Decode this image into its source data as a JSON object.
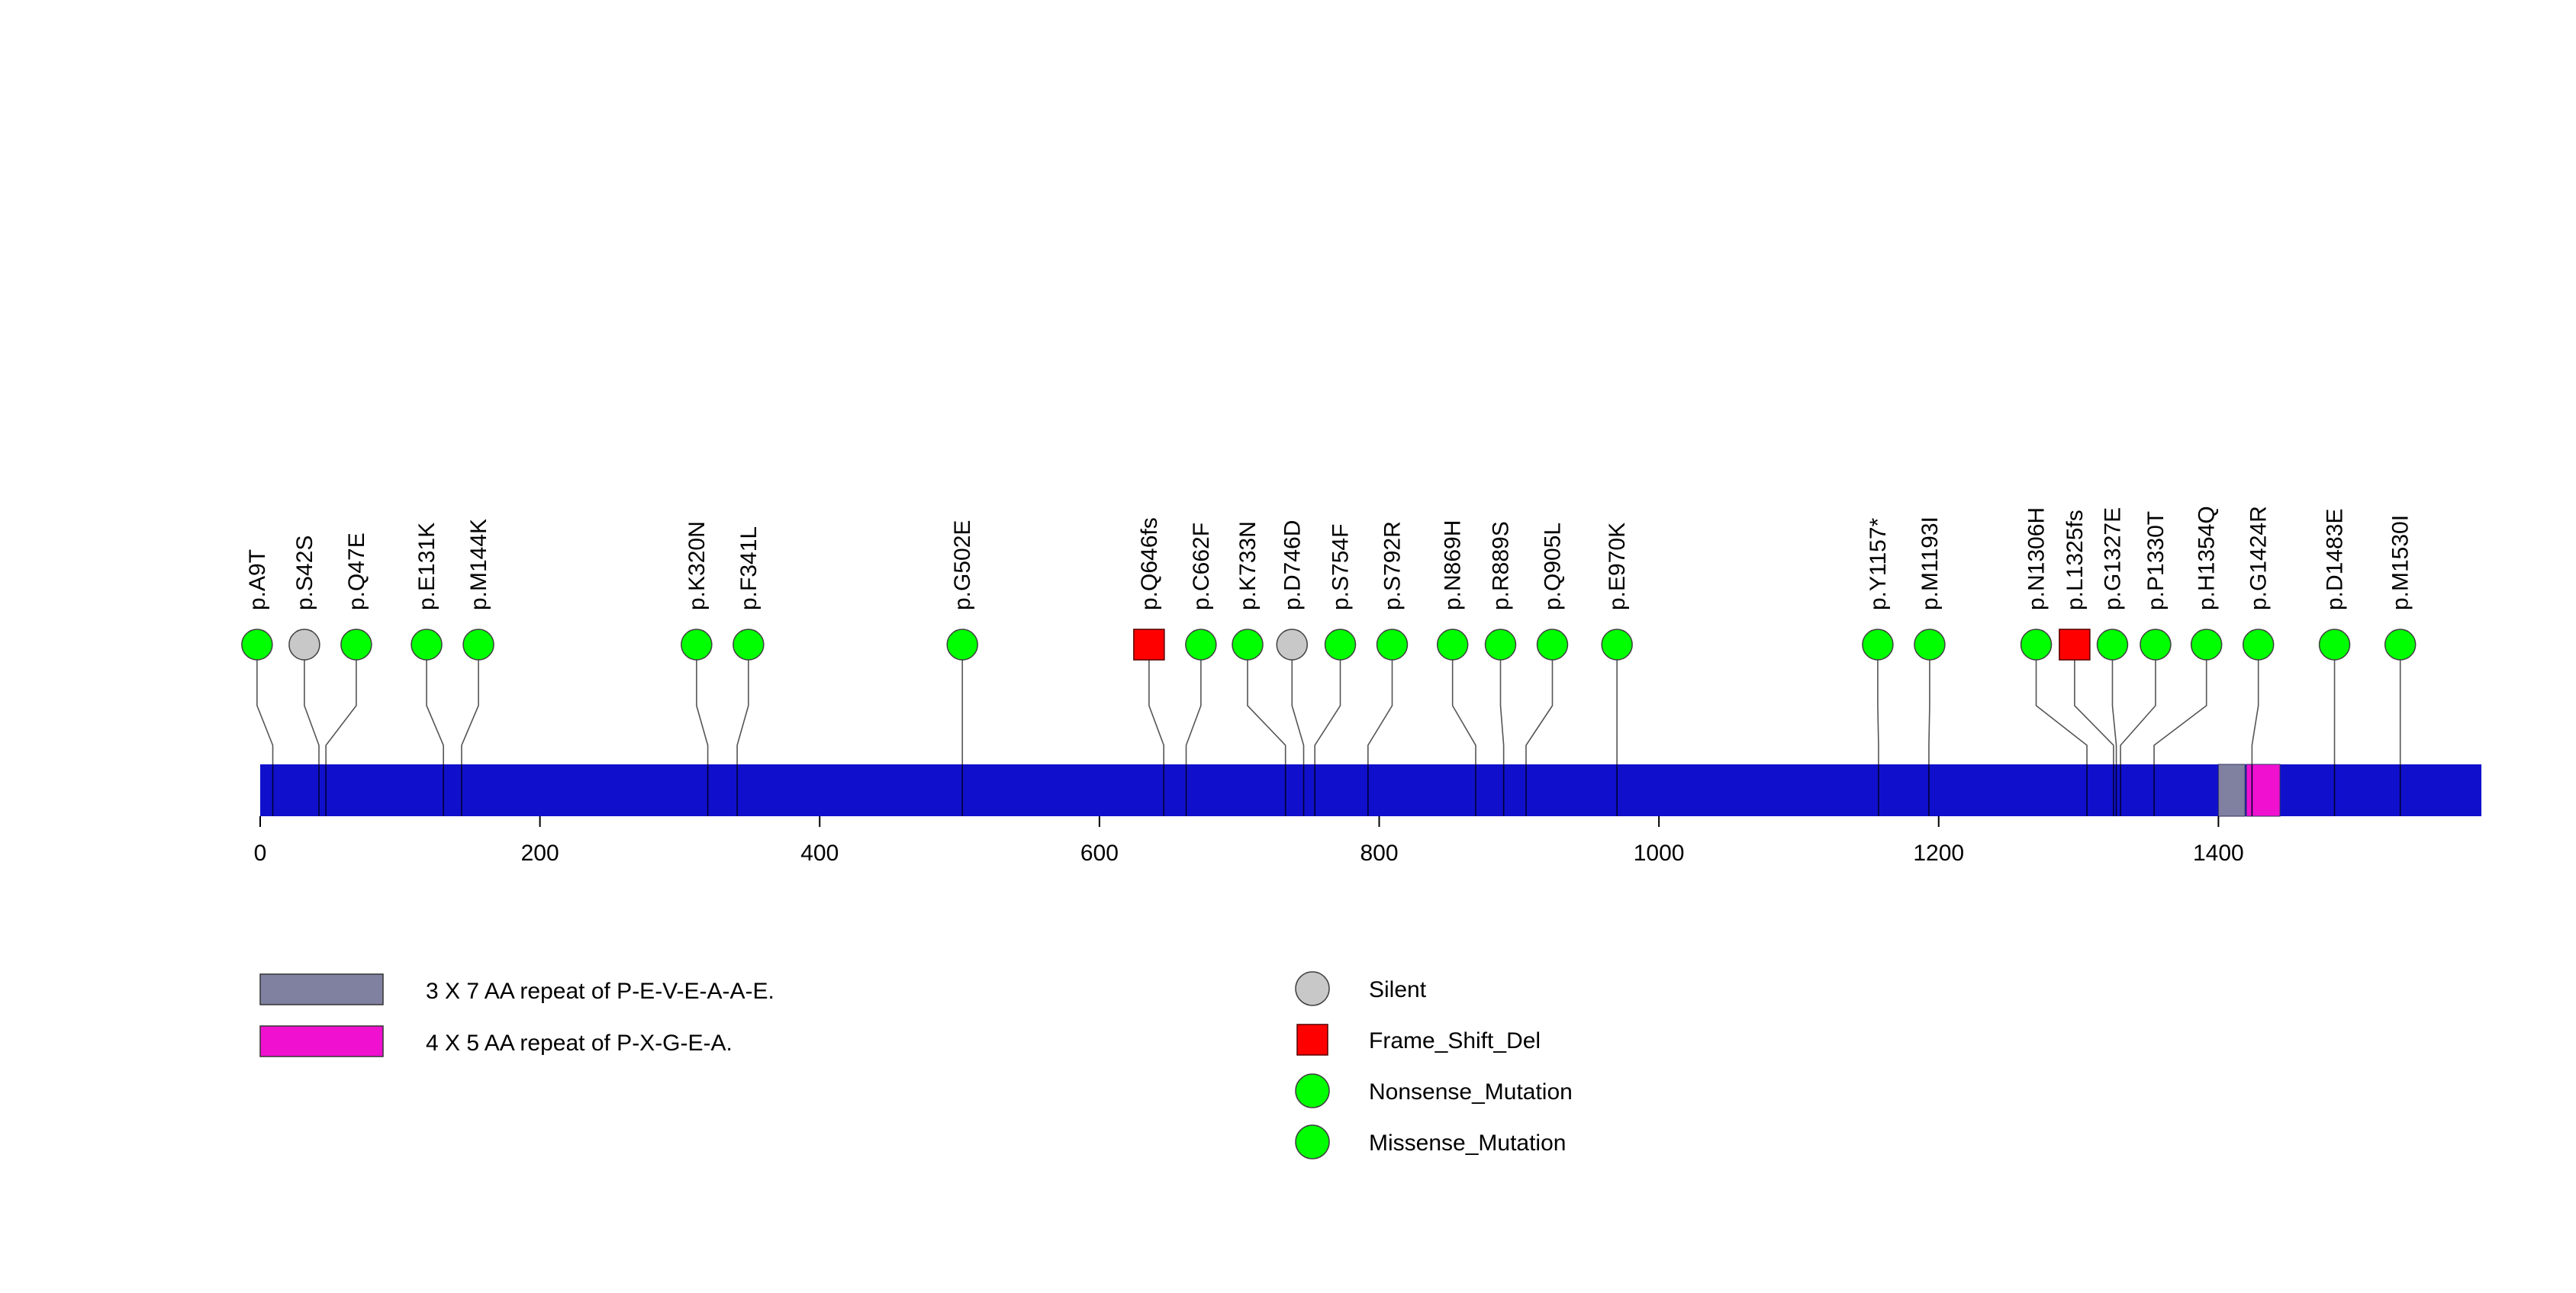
{
  "chart_data": {
    "type": "lollipop",
    "x_axis": {
      "min": 0,
      "max": 1588,
      "ticks": [
        0,
        200,
        400,
        600,
        800,
        1000,
        1200,
        1400
      ]
    },
    "protein": {
      "start": 0,
      "end": 1588,
      "color": "#1010cc"
    },
    "domains": [
      {
        "name": "3 X 7 AA repeat of P-E-V-E-A-A-E.",
        "start": 1400,
        "end": 1419,
        "color": "#8080a0"
      },
      {
        "name": "4 X 5 AA repeat of P-X-G-E-A.",
        "start": 1420,
        "end": 1444,
        "color": "#f010d0"
      }
    ],
    "mutations": [
      {
        "label": "p.A9T",
        "position": 9,
        "type": "Missense_Mutation"
      },
      {
        "label": "p.S42S",
        "position": 42,
        "type": "Silent"
      },
      {
        "label": "p.Q47E",
        "position": 47,
        "type": "Missense_Mutation"
      },
      {
        "label": "p.E131K",
        "position": 131,
        "type": "Missense_Mutation"
      },
      {
        "label": "p.M144K",
        "position": 144,
        "type": "Missense_Mutation"
      },
      {
        "label": "p.K320N",
        "position": 320,
        "type": "Missense_Mutation"
      },
      {
        "label": "p.F341L",
        "position": 341,
        "type": "Missense_Mutation"
      },
      {
        "label": "p.G502E",
        "position": 502,
        "type": "Missense_Mutation"
      },
      {
        "label": "p.Q646fs",
        "position": 646,
        "type": "Frame_Shift_Del"
      },
      {
        "label": "p.C662F",
        "position": 662,
        "type": "Missense_Mutation"
      },
      {
        "label": "p.K733N",
        "position": 733,
        "type": "Missense_Mutation"
      },
      {
        "label": "p.D746D",
        "position": 746,
        "type": "Silent"
      },
      {
        "label": "p.S754F",
        "position": 754,
        "type": "Missense_Mutation"
      },
      {
        "label": "p.S792R",
        "position": 792,
        "type": "Missense_Mutation"
      },
      {
        "label": "p.N869H",
        "position": 869,
        "type": "Missense_Mutation"
      },
      {
        "label": "p.R889S",
        "position": 889,
        "type": "Missense_Mutation"
      },
      {
        "label": "p.Q905L",
        "position": 905,
        "type": "Missense_Mutation"
      },
      {
        "label": "p.E970K",
        "position": 970,
        "type": "Missense_Mutation"
      },
      {
        "label": "p.Y1157*",
        "position": 1157,
        "type": "Nonsense_Mutation"
      },
      {
        "label": "p.M1193I",
        "position": 1193,
        "type": "Missense_Mutation"
      },
      {
        "label": "p.N1306H",
        "position": 1306,
        "type": "Missense_Mutation"
      },
      {
        "label": "p.L1325fs",
        "position": 1325,
        "type": "Frame_Shift_Del"
      },
      {
        "label": "p.G1327E",
        "position": 1327,
        "type": "Missense_Mutation"
      },
      {
        "label": "p.P1330T",
        "position": 1330,
        "type": "Missense_Mutation"
      },
      {
        "label": "p.H1354Q",
        "position": 1354,
        "type": "Missense_Mutation"
      },
      {
        "label": "p.G1424R",
        "position": 1424,
        "type": "Missense_Mutation"
      },
      {
        "label": "p.D1483E",
        "position": 1483,
        "type": "Missense_Mutation"
      },
      {
        "label": "p.M1530I",
        "position": 1530,
        "type": "Missense_Mutation"
      }
    ],
    "mutation_types": [
      {
        "name": "Silent",
        "shape": "circle",
        "color": "#c8c8c8"
      },
      {
        "name": "Frame_Shift_Del",
        "shape": "square",
        "color": "#ff0000"
      },
      {
        "name": "Nonsense_Mutation",
        "shape": "circle",
        "color": "#00ff00"
      },
      {
        "name": "Missense_Mutation",
        "shape": "circle",
        "color": "#00ff00"
      }
    ]
  }
}
